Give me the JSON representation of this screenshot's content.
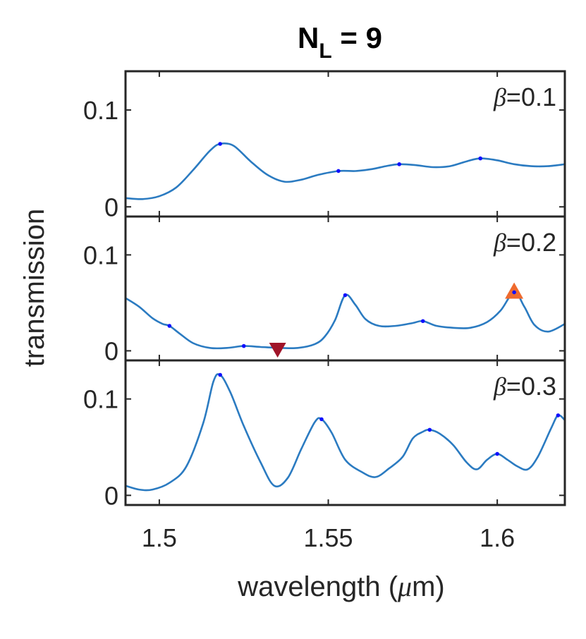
{
  "chart_data": {
    "type": "line",
    "title": "N",
    "title_subscript": "L",
    "title_suffix": " = 9",
    "xlabel": "wavelength (",
    "xlabel_symbol": "μ",
    "xlabel_suffix": "m)",
    "ylabel": "transmission",
    "xlim": [
      1.49,
      1.62
    ],
    "x_ticks": [
      {
        "value": 1.5,
        "label": "1.5"
      },
      {
        "value": 1.55,
        "label": "1.55"
      },
      {
        "value": 1.6,
        "label": "1.6"
      }
    ],
    "colors": {
      "line": "#2b7bc1",
      "dot": "#1010ff",
      "up_marker": "#ef6a2e",
      "down_marker": "#a01429",
      "axis": "#262626"
    },
    "panels": [
      {
        "beta_symbol": "β",
        "beta_value": "=0.1",
        "ylim": [
          -0.01,
          0.14
        ],
        "y_ticks": [
          {
            "value": 0,
            "label": "0"
          },
          {
            "value": 0.1,
            "label": "0.1"
          }
        ],
        "x": [
          1.49,
          1.495,
          1.5,
          1.505,
          1.51,
          1.515,
          1.518,
          1.522,
          1.527,
          1.532,
          1.537,
          1.542,
          1.547,
          1.553,
          1.558,
          1.563,
          1.567,
          1.571,
          1.576,
          1.581,
          1.586,
          1.591,
          1.595,
          1.6,
          1.605,
          1.61,
          1.615,
          1.62
        ],
        "y": [
          0.009,
          0.008,
          0.011,
          0.02,
          0.038,
          0.058,
          0.065,
          0.063,
          0.047,
          0.033,
          0.026,
          0.028,
          0.033,
          0.037,
          0.037,
          0.039,
          0.042,
          0.044,
          0.043,
          0.041,
          0.042,
          0.047,
          0.05,
          0.048,
          0.044,
          0.042,
          0.042,
          0.044
        ],
        "peaks": [
          [
            1.518,
            0.065
          ],
          [
            1.553,
            0.037
          ],
          [
            1.571,
            0.044
          ],
          [
            1.595,
            0.05
          ]
        ],
        "up_markers": [],
        "down_markers": []
      },
      {
        "beta_symbol": "β",
        "beta_value": "=0.2",
        "ylim": [
          -0.01,
          0.14
        ],
        "y_ticks": [
          {
            "value": 0,
            "label": "0"
          },
          {
            "value": 0.1,
            "label": "0.1"
          }
        ],
        "x": [
          1.49,
          1.494,
          1.498,
          1.501,
          1.503,
          1.506,
          1.51,
          1.515,
          1.52,
          1.525,
          1.53,
          1.536,
          1.541,
          1.546,
          1.549,
          1.552,
          1.555,
          1.558,
          1.561,
          1.565,
          1.57,
          1.575,
          1.578,
          1.582,
          1.587,
          1.592,
          1.597,
          1.601,
          1.605,
          1.608,
          1.611,
          1.615,
          1.62
        ],
        "y": [
          0.055,
          0.046,
          0.034,
          0.028,
          0.026,
          0.018,
          0.008,
          0.003,
          0.003,
          0.005,
          0.004,
          0.003,
          0.003,
          0.007,
          0.015,
          0.032,
          0.058,
          0.048,
          0.033,
          0.026,
          0.026,
          0.029,
          0.031,
          0.026,
          0.024,
          0.024,
          0.03,
          0.042,
          0.061,
          0.046,
          0.027,
          0.02,
          0.028
        ],
        "peaks": [
          [
            1.503,
            0.026
          ],
          [
            1.525,
            0.005
          ],
          [
            1.555,
            0.058
          ],
          [
            1.578,
            0.031
          ],
          [
            1.605,
            0.061
          ]
        ],
        "up_markers": [
          [
            1.605,
            0.061
          ]
        ],
        "down_markers": [
          [
            1.535,
            0.001
          ]
        ]
      },
      {
        "beta_symbol": "β",
        "beta_value": "=0.3",
        "ylim": [
          -0.01,
          0.14
        ],
        "y_ticks": [
          {
            "value": 0,
            "label": "0"
          },
          {
            "value": 0.1,
            "label": "0.1"
          }
        ],
        "x": [
          1.49,
          1.494,
          1.498,
          1.503,
          1.508,
          1.513,
          1.516,
          1.518,
          1.521,
          1.525,
          1.53,
          1.534,
          1.538,
          1.542,
          1.546,
          1.548,
          1.551,
          1.555,
          1.56,
          1.564,
          1.568,
          1.572,
          1.575,
          1.578,
          1.58,
          1.583,
          1.587,
          1.591,
          1.594,
          1.597,
          1.6,
          1.603,
          1.606,
          1.609,
          1.612,
          1.616,
          1.618,
          1.62
        ],
        "y": [
          0.01,
          0.006,
          0.006,
          0.013,
          0.03,
          0.075,
          0.118,
          0.125,
          0.107,
          0.072,
          0.034,
          0.01,
          0.018,
          0.048,
          0.076,
          0.079,
          0.065,
          0.037,
          0.024,
          0.019,
          0.028,
          0.04,
          0.059,
          0.066,
          0.068,
          0.064,
          0.052,
          0.034,
          0.027,
          0.037,
          0.043,
          0.037,
          0.03,
          0.027,
          0.04,
          0.07,
          0.083,
          0.078
        ],
        "peaks": [
          [
            1.518,
            0.125
          ],
          [
            1.548,
            0.079
          ],
          [
            1.58,
            0.068
          ],
          [
            1.6,
            0.043
          ],
          [
            1.618,
            0.083
          ]
        ],
        "up_markers": [],
        "down_markers": []
      }
    ]
  }
}
